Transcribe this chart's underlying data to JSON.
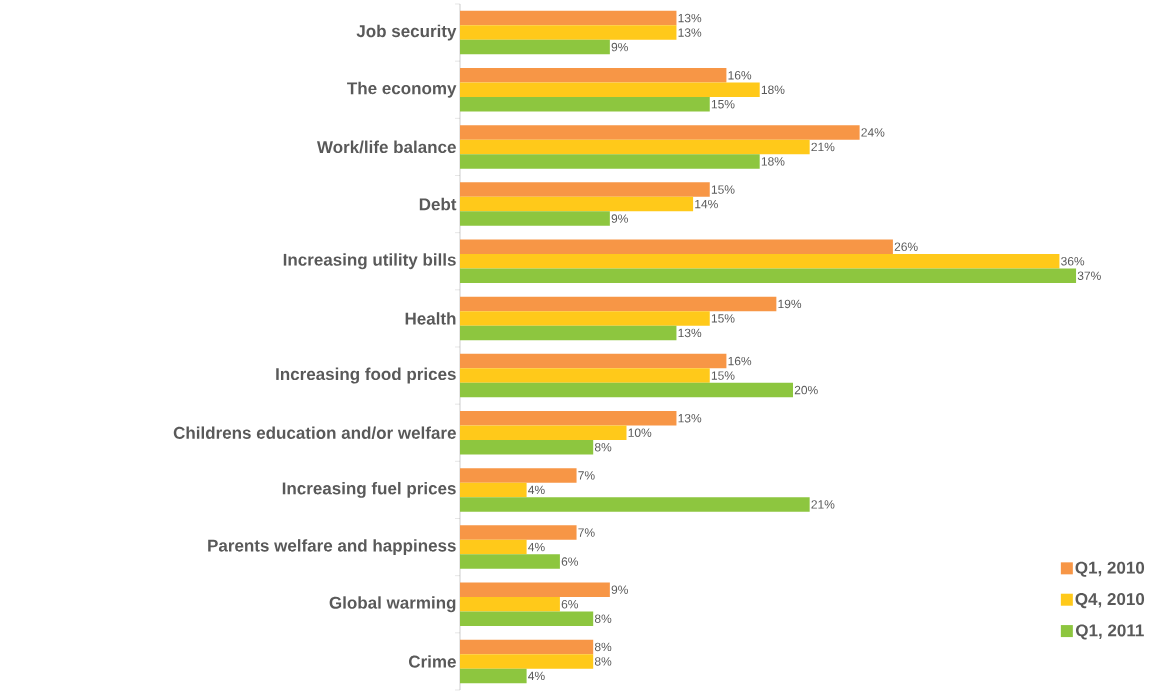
{
  "chart_data": {
    "type": "bar",
    "orientation": "horizontal",
    "legend": "bottom right",
    "categories": [
      "Job security",
      "The economy",
      "Work/life balance",
      "Debt",
      "Increasing utility bills",
      "Health",
      "Increasing food prices",
      "Childrens education and/or welfare",
      "Increasing fuel prices",
      "Parents welfare and happiness",
      "Global warming",
      "Crime"
    ],
    "series": [
      {
        "name": "Q1, 2010",
        "color": "#f79646",
        "values": [
          13,
          16,
          24,
          15,
          26,
          19,
          16,
          13,
          7,
          7,
          9,
          8
        ],
        "value_labels": [
          "13%",
          "16%",
          "24%",
          "15%",
          "26%",
          "19%",
          "16%",
          "13%",
          "7%",
          "7%",
          "9%",
          "8%"
        ]
      },
      {
        "name": "Q4, 2010",
        "color": "#ffc91a",
        "values": [
          13,
          18,
          21,
          14,
          36,
          15,
          15,
          10,
          4,
          4,
          6,
          8
        ],
        "value_labels": [
          "13%",
          "18%",
          "21%",
          "14%",
          "36%",
          "15%",
          "15%",
          "10%",
          "4%",
          "4%",
          "6%",
          "8%"
        ]
      },
      {
        "name": "Q1, 2011",
        "color": "#8dc63f",
        "values": [
          9,
          15,
          18,
          9,
          37,
          13,
          20,
          8,
          21,
          6,
          8,
          4
        ],
        "value_labels": [
          "9%",
          "15%",
          "18%",
          "9%",
          "37%",
          "13%",
          "20%",
          "8%",
          "21%",
          "6%",
          "8%",
          "4%"
        ]
      }
    ]
  }
}
